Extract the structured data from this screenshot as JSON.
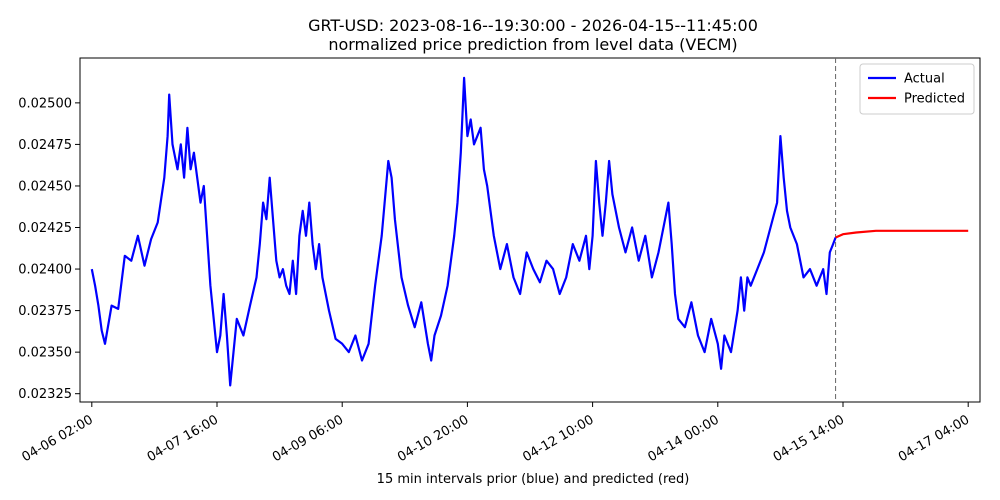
{
  "chart_data": {
    "type": "line",
    "title": "GRT-USD: 2023-08-16--19:30:00 - 2026-04-15--11:45:00",
    "subtitle": "normalized price prediction from level data (VECM)",
    "xlabel": "15 min intervals prior (blue) and predicted (red)",
    "ylabel": "",
    "x_is_time": true,
    "xlim": [
      "2026-04-05T22:25",
      "2026-04-17T07:35"
    ],
    "ylim": [
      0.0232,
      0.02527
    ],
    "x_ticks": [
      {
        "t": "2026-04-06T02:00",
        "label": "04-06 02:00"
      },
      {
        "t": "2026-04-07T16:00",
        "label": "04-07 16:00"
      },
      {
        "t": "2026-04-09T06:00",
        "label": "04-09 06:00"
      },
      {
        "t": "2026-04-10T20:00",
        "label": "04-10 20:00"
      },
      {
        "t": "2026-04-12T10:00",
        "label": "04-12 10:00"
      },
      {
        "t": "2026-04-14T00:00",
        "label": "04-14 00:00"
      },
      {
        "t": "2026-04-15T14:00",
        "label": "04-15 14:00"
      },
      {
        "t": "2026-04-17T04:00",
        "label": "04-17 04:00"
      }
    ],
    "y_ticks": [
      {
        "v": 0.02325,
        "label": "0.02325"
      },
      {
        "v": 0.0235,
        "label": "0.02350"
      },
      {
        "v": 0.02375,
        "label": "0.02375"
      },
      {
        "v": 0.024,
        "label": "0.02400"
      },
      {
        "v": 0.02425,
        "label": "0.02425"
      },
      {
        "v": 0.0245,
        "label": "0.02450"
      },
      {
        "v": 0.02475,
        "label": "0.02475"
      },
      {
        "v": 0.025,
        "label": "0.02500"
      }
    ],
    "forecast_start": "2026-04-15T11:45",
    "legend_position": "top-right",
    "grid": false,
    "series": [
      {
        "name": "Actual",
        "color": "#0000ff",
        "points": [
          [
            "2026-04-06T02:00",
            0.024
          ],
          [
            "2026-04-06T03:00",
            0.0239
          ],
          [
            "2026-04-06T04:00",
            0.02378
          ],
          [
            "2026-04-06T05:00",
            0.02363
          ],
          [
            "2026-04-06T06:00",
            0.02355
          ],
          [
            "2026-04-06T08:00",
            0.02378
          ],
          [
            "2026-04-06T10:00",
            0.02376
          ],
          [
            "2026-04-06T12:00",
            0.02408
          ],
          [
            "2026-04-06T14:00",
            0.02405
          ],
          [
            "2026-04-06T16:00",
            0.0242
          ],
          [
            "2026-04-06T18:00",
            0.02402
          ],
          [
            "2026-04-06T20:00",
            0.02418
          ],
          [
            "2026-04-06T22:00",
            0.02428
          ],
          [
            "2026-04-07T00:00",
            0.02455
          ],
          [
            "2026-04-07T01:00",
            0.0248
          ],
          [
            "2026-04-07T01:30",
            0.02505
          ],
          [
            "2026-04-07T02:30",
            0.02475
          ],
          [
            "2026-04-07T04:00",
            0.0246
          ],
          [
            "2026-04-07T05:00",
            0.02475
          ],
          [
            "2026-04-07T06:00",
            0.02455
          ],
          [
            "2026-04-07T07:00",
            0.02485
          ],
          [
            "2026-04-07T08:00",
            0.0246
          ],
          [
            "2026-04-07T09:00",
            0.0247
          ],
          [
            "2026-04-07T10:00",
            0.02455
          ],
          [
            "2026-04-07T11:00",
            0.0244
          ],
          [
            "2026-04-07T12:00",
            0.0245
          ],
          [
            "2026-04-07T13:00",
            0.0242
          ],
          [
            "2026-04-07T14:00",
            0.0239
          ],
          [
            "2026-04-07T15:00",
            0.0237
          ],
          [
            "2026-04-07T16:00",
            0.0235
          ],
          [
            "2026-04-07T17:00",
            0.0236
          ],
          [
            "2026-04-07T18:00",
            0.02385
          ],
          [
            "2026-04-07T19:00",
            0.0236
          ],
          [
            "2026-04-07T20:00",
            0.0233
          ],
          [
            "2026-04-07T21:00",
            0.0235
          ],
          [
            "2026-04-07T22:00",
            0.0237
          ],
          [
            "2026-04-08T00:00",
            0.0236
          ],
          [
            "2026-04-08T02:00",
            0.02378
          ],
          [
            "2026-04-08T04:00",
            0.02395
          ],
          [
            "2026-04-08T05:00",
            0.02415
          ],
          [
            "2026-04-08T06:00",
            0.0244
          ],
          [
            "2026-04-08T07:00",
            0.0243
          ],
          [
            "2026-04-08T08:00",
            0.02455
          ],
          [
            "2026-04-08T09:00",
            0.0243
          ],
          [
            "2026-04-08T10:00",
            0.02405
          ],
          [
            "2026-04-08T11:00",
            0.02395
          ],
          [
            "2026-04-08T12:00",
            0.024
          ],
          [
            "2026-04-08T13:00",
            0.0239
          ],
          [
            "2026-04-08T14:00",
            0.02385
          ],
          [
            "2026-04-08T15:00",
            0.02405
          ],
          [
            "2026-04-08T16:00",
            0.02385
          ],
          [
            "2026-04-08T17:00",
            0.0242
          ],
          [
            "2026-04-08T18:00",
            0.02435
          ],
          [
            "2026-04-08T19:00",
            0.0242
          ],
          [
            "2026-04-08T20:00",
            0.0244
          ],
          [
            "2026-04-08T21:00",
            0.02415
          ],
          [
            "2026-04-08T22:00",
            0.024
          ],
          [
            "2026-04-08T23:00",
            0.02415
          ],
          [
            "2026-04-09T00:00",
            0.02395
          ],
          [
            "2026-04-09T02:00",
            0.02375
          ],
          [
            "2026-04-09T04:00",
            0.02358
          ],
          [
            "2026-04-09T06:00",
            0.02355
          ],
          [
            "2026-04-09T08:00",
            0.0235
          ],
          [
            "2026-04-09T10:00",
            0.0236
          ],
          [
            "2026-04-09T12:00",
            0.02345
          ],
          [
            "2026-04-09T14:00",
            0.02355
          ],
          [
            "2026-04-09T16:00",
            0.0239
          ],
          [
            "2026-04-09T18:00",
            0.0242
          ],
          [
            "2026-04-09T20:00",
            0.02465
          ],
          [
            "2026-04-09T21:00",
            0.02455
          ],
          [
            "2026-04-09T22:00",
            0.0243
          ],
          [
            "2026-04-10T00:00",
            0.02395
          ],
          [
            "2026-04-10T02:00",
            0.02378
          ],
          [
            "2026-04-10T04:00",
            0.02365
          ],
          [
            "2026-04-10T06:00",
            0.0238
          ],
          [
            "2026-04-10T08:00",
            0.02355
          ],
          [
            "2026-04-10T09:00",
            0.02345
          ],
          [
            "2026-04-10T10:00",
            0.0236
          ],
          [
            "2026-04-10T12:00",
            0.02372
          ],
          [
            "2026-04-10T14:00",
            0.0239
          ],
          [
            "2026-04-10T16:00",
            0.0242
          ],
          [
            "2026-04-10T17:00",
            0.0244
          ],
          [
            "2026-04-10T18:00",
            0.0247
          ],
          [
            "2026-04-10T19:00",
            0.02515
          ],
          [
            "2026-04-10T20:00",
            0.0248
          ],
          [
            "2026-04-10T21:00",
            0.0249
          ],
          [
            "2026-04-10T22:00",
            0.02475
          ],
          [
            "2026-04-11T00:00",
            0.02485
          ],
          [
            "2026-04-11T01:00",
            0.0246
          ],
          [
            "2026-04-11T02:00",
            0.0245
          ],
          [
            "2026-04-11T04:00",
            0.0242
          ],
          [
            "2026-04-11T06:00",
            0.024
          ],
          [
            "2026-04-11T08:00",
            0.02415
          ],
          [
            "2026-04-11T10:00",
            0.02395
          ],
          [
            "2026-04-11T12:00",
            0.02385
          ],
          [
            "2026-04-11T14:00",
            0.0241
          ],
          [
            "2026-04-11T16:00",
            0.024
          ],
          [
            "2026-04-11T18:00",
            0.02392
          ],
          [
            "2026-04-11T20:00",
            0.02405
          ],
          [
            "2026-04-11T22:00",
            0.024
          ],
          [
            "2026-04-12T00:00",
            0.02385
          ],
          [
            "2026-04-12T02:00",
            0.02395
          ],
          [
            "2026-04-12T04:00",
            0.02415
          ],
          [
            "2026-04-12T06:00",
            0.02405
          ],
          [
            "2026-04-12T08:00",
            0.0242
          ],
          [
            "2026-04-12T09:00",
            0.024
          ],
          [
            "2026-04-12T10:00",
            0.0242
          ],
          [
            "2026-04-12T11:00",
            0.02465
          ],
          [
            "2026-04-12T12:00",
            0.0244
          ],
          [
            "2026-04-12T13:00",
            0.0242
          ],
          [
            "2026-04-12T14:00",
            0.0244
          ],
          [
            "2026-04-12T15:00",
            0.02465
          ],
          [
            "2026-04-12T16:00",
            0.02445
          ],
          [
            "2026-04-12T18:00",
            0.02425
          ],
          [
            "2026-04-12T20:00",
            0.0241
          ],
          [
            "2026-04-12T22:00",
            0.02425
          ],
          [
            "2026-04-13T00:00",
            0.02405
          ],
          [
            "2026-04-13T02:00",
            0.0242
          ],
          [
            "2026-04-13T04:00",
            0.02395
          ],
          [
            "2026-04-13T06:00",
            0.0241
          ],
          [
            "2026-04-13T08:00",
            0.0243
          ],
          [
            "2026-04-13T09:00",
            0.0244
          ],
          [
            "2026-04-13T10:00",
            0.02415
          ],
          [
            "2026-04-13T11:00",
            0.02385
          ],
          [
            "2026-04-13T12:00",
            0.0237
          ],
          [
            "2026-04-13T14:00",
            0.02365
          ],
          [
            "2026-04-13T16:00",
            0.0238
          ],
          [
            "2026-04-13T18:00",
            0.0236
          ],
          [
            "2026-04-13T20:00",
            0.0235
          ],
          [
            "2026-04-13T22:00",
            0.0237
          ],
          [
            "2026-04-14T00:00",
            0.02355
          ],
          [
            "2026-04-14T01:00",
            0.0234
          ],
          [
            "2026-04-14T02:00",
            0.0236
          ],
          [
            "2026-04-14T04:00",
            0.0235
          ],
          [
            "2026-04-14T06:00",
            0.02375
          ],
          [
            "2026-04-14T07:00",
            0.02395
          ],
          [
            "2026-04-14T08:00",
            0.02375
          ],
          [
            "2026-04-14T09:00",
            0.02395
          ],
          [
            "2026-04-14T10:00",
            0.0239
          ],
          [
            "2026-04-14T12:00",
            0.024
          ],
          [
            "2026-04-14T14:00",
            0.0241
          ],
          [
            "2026-04-14T16:00",
            0.02425
          ],
          [
            "2026-04-14T18:00",
            0.0244
          ],
          [
            "2026-04-14T19:00",
            0.0248
          ],
          [
            "2026-04-14T20:00",
            0.02455
          ],
          [
            "2026-04-14T21:00",
            0.02435
          ],
          [
            "2026-04-14T22:00",
            0.02425
          ],
          [
            "2026-04-15T00:00",
            0.02415
          ],
          [
            "2026-04-15T02:00",
            0.02395
          ],
          [
            "2026-04-15T04:00",
            0.024
          ],
          [
            "2026-04-15T06:00",
            0.0239
          ],
          [
            "2026-04-15T08:00",
            0.024
          ],
          [
            "2026-04-15T09:00",
            0.02385
          ],
          [
            "2026-04-15T10:00",
            0.0241
          ],
          [
            "2026-04-15T11:00",
            0.02415
          ],
          [
            "2026-04-15T11:45",
            0.02419
          ]
        ]
      },
      {
        "name": "Predicted",
        "color": "#ff0000",
        "points": [
          [
            "2026-04-15T11:45",
            0.02419
          ],
          [
            "2026-04-15T14:00",
            0.02421
          ],
          [
            "2026-04-15T18:00",
            0.02422
          ],
          [
            "2026-04-16T00:00",
            0.02423
          ],
          [
            "2026-04-16T12:00",
            0.02423
          ],
          [
            "2026-04-17T04:00",
            0.02423
          ]
        ]
      }
    ]
  }
}
